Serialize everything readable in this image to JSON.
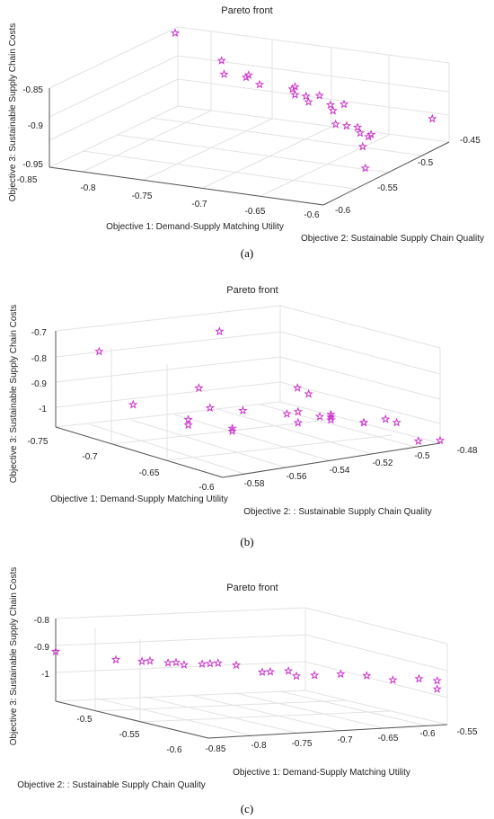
{
  "chart_data": [
    {
      "type": "scatter",
      "title": "Pareto front",
      "caption": "(a)",
      "xlabel": "Objective 1: Demand-Supply Matching Utility",
      "ylabel": "Objective 2: Sustainable Supply Chain Quality",
      "zlabel": "Objective 3: Sustainable Supply Chain Costs",
      "x_ticks": [
        "-0.8",
        "-0.75",
        "-0.7",
        "-0.65",
        "-0.6"
      ],
      "y_ticks": [
        "-0.6",
        "-0.55",
        "-0.5",
        "-0.45"
      ],
      "z_ticks": [
        "-0.85",
        "-0.9",
        "-0.95"
      ],
      "corner_label": "-0.85",
      "marker": "pentagram",
      "color": "#cc33cc",
      "grid": true,
      "points": [
        {
          "x": -0.85,
          "y": -0.45,
          "z": -0.86
        },
        {
          "x": -0.8,
          "y": -0.46,
          "z": -0.88
        },
        {
          "x": -0.79,
          "y": -0.47,
          "z": -0.89
        },
        {
          "x": -0.77,
          "y": -0.47,
          "z": -0.89
        },
        {
          "x": -0.76,
          "y": -0.48,
          "z": -0.88
        },
        {
          "x": -0.75,
          "y": -0.48,
          "z": -0.89
        },
        {
          "x": -0.72,
          "y": -0.48,
          "z": -0.89
        },
        {
          "x": -0.71,
          "y": -0.49,
          "z": -0.89
        },
        {
          "x": -0.71,
          "y": -0.49,
          "z": -0.88
        },
        {
          "x": -0.7,
          "y": -0.49,
          "z": -0.89
        },
        {
          "x": -0.69,
          "y": -0.5,
          "z": -0.89
        },
        {
          "x": -0.68,
          "y": -0.5,
          "z": -0.88
        },
        {
          "x": -0.67,
          "y": -0.5,
          "z": -0.89
        },
        {
          "x": -0.66,
          "y": -0.51,
          "z": -0.89
        },
        {
          "x": -0.65,
          "y": -0.51,
          "z": -0.88
        },
        {
          "x": -0.65,
          "y": -0.52,
          "z": -0.9
        },
        {
          "x": -0.64,
          "y": -0.52,
          "z": -0.9
        },
        {
          "x": -0.63,
          "y": -0.52,
          "z": -0.9
        },
        {
          "x": -0.62,
          "y": -0.53,
          "z": -0.9
        },
        {
          "x": -0.61,
          "y": -0.53,
          "z": -0.9
        },
        {
          "x": -0.61,
          "y": -0.54,
          "z": -0.91
        },
        {
          "x": -0.62,
          "y": -0.52,
          "z": -0.91
        },
        {
          "x": -0.6,
          "y": -0.47,
          "z": -0.91
        },
        {
          "x": -0.6,
          "y": -0.55,
          "z": -0.93
        }
      ]
    },
    {
      "type": "scatter",
      "title": "Pareto front",
      "caption": "(b)",
      "xlabel": "Objective 1: Demand-Supply Matching Utility",
      "ylabel": "Objective 2: : Sustainable Supply Chain Quality",
      "zlabel": "Objective 3: Sustainable Supply Chain Costs",
      "x_ticks": [
        "-0.75",
        "-0.7",
        "-0.65",
        "-0.6"
      ],
      "y_ticks": [
        "-0.58",
        "-0.56",
        "-0.54",
        "-0.52",
        "-0.5",
        "-0.48"
      ],
      "z_ticks": [
        "-0.7",
        "-0.8",
        "-0.9",
        "-1"
      ],
      "marker": "pentagram",
      "color": "#cc33cc",
      "grid": true,
      "points": [
        {
          "x": -0.75,
          "y": -0.56,
          "z": -0.8
        },
        {
          "x": -0.72,
          "y": -0.52,
          "z": -0.74
        },
        {
          "x": -0.7,
          "y": -0.57,
          "z": -0.92
        },
        {
          "x": -0.68,
          "y": -0.55,
          "z": -0.86
        },
        {
          "x": -0.67,
          "y": -0.55,
          "z": -0.92
        },
        {
          "x": -0.67,
          "y": -0.56,
          "z": -0.95
        },
        {
          "x": -0.67,
          "y": -0.56,
          "z": -0.97
        },
        {
          "x": -0.66,
          "y": -0.54,
          "z": -0.93
        },
        {
          "x": -0.65,
          "y": -0.55,
          "z": -0.97
        },
        {
          "x": -0.65,
          "y": -0.55,
          "z": -0.98
        },
        {
          "x": -0.65,
          "y": -0.52,
          "z": -0.86
        },
        {
          "x": -0.64,
          "y": -0.53,
          "z": -0.93
        },
        {
          "x": -0.64,
          "y": -0.52,
          "z": -0.87
        },
        {
          "x": -0.63,
          "y": -0.53,
          "z": -0.91
        },
        {
          "x": -0.63,
          "y": -0.53,
          "z": -0.95
        },
        {
          "x": -0.63,
          "y": -0.52,
          "z": -0.94
        },
        {
          "x": -0.62,
          "y": -0.52,
          "z": -0.94
        },
        {
          "x": -0.62,
          "y": -0.52,
          "z": -0.93
        },
        {
          "x": -0.62,
          "y": -0.52,
          "z": -0.92
        },
        {
          "x": -0.61,
          "y": -0.51,
          "z": -0.95
        },
        {
          "x": -0.61,
          "y": -0.51,
          "z": -0.95
        },
        {
          "x": -0.61,
          "y": -0.5,
          "z": -0.95
        },
        {
          "x": -0.6,
          "y": -0.5,
          "z": -0.95
        },
        {
          "x": -0.6,
          "y": -0.49,
          "z": -1.03
        },
        {
          "x": -0.6,
          "y": -0.48,
          "z": -1.04
        }
      ]
    },
    {
      "type": "scatter",
      "title": "Pareto front",
      "caption": "(c)",
      "xlabel": "Objective 2: : Sustainable Supply Chain Quality",
      "ylabel": "Objective 1: Demand-Supply Matching Utility",
      "zlabel": "Objective 3: Sustainable Supply Chain Costs",
      "x_ticks": [
        "-0.5",
        "-0.55",
        "-0.6"
      ],
      "y_ticks": [
        "-0.85",
        "-0.8",
        "-0.75",
        "-0.7",
        "-0.65",
        "-0.6",
        "-0.55"
      ],
      "z_ticks": [
        "-0.8",
        "-0.9",
        "-1"
      ],
      "marker": "pentagram",
      "color": "#cc33cc",
      "grid": true,
      "points": [
        {
          "x": -0.45,
          "y": -0.85,
          "z": -0.87
        },
        {
          "x": -0.47,
          "y": -0.8,
          "z": -0.89
        },
        {
          "x": -0.48,
          "y": -0.78,
          "z": -0.89
        },
        {
          "x": -0.48,
          "y": -0.77,
          "z": -0.89
        },
        {
          "x": -0.49,
          "y": -0.76,
          "z": -0.89
        },
        {
          "x": -0.49,
          "y": -0.75,
          "z": -0.89
        },
        {
          "x": -0.49,
          "y": -0.74,
          "z": -0.9
        },
        {
          "x": -0.5,
          "y": -0.73,
          "z": -0.89
        },
        {
          "x": -0.5,
          "y": -0.72,
          "z": -0.89
        },
        {
          "x": -0.5,
          "y": -0.71,
          "z": -0.89
        },
        {
          "x": -0.51,
          "y": -0.7,
          "z": -0.89
        },
        {
          "x": -0.52,
          "y": -0.68,
          "z": -0.91
        },
        {
          "x": -0.52,
          "y": -0.67,
          "z": -0.91
        },
        {
          "x": -0.53,
          "y": -0.66,
          "z": -0.9
        },
        {
          "x": -0.53,
          "y": -0.65,
          "z": -0.92
        },
        {
          "x": -0.54,
          "y": -0.64,
          "z": -0.91
        },
        {
          "x": -0.55,
          "y": -0.62,
          "z": -0.9
        },
        {
          "x": -0.56,
          "y": -0.6,
          "z": -0.9
        },
        {
          "x": -0.57,
          "y": -0.58,
          "z": -0.91
        },
        {
          "x": -0.58,
          "y": -0.56,
          "z": -0.9
        },
        {
          "x": -0.59,
          "y": -0.55,
          "z": -0.9
        },
        {
          "x": -0.59,
          "y": -0.55,
          "z": -0.93
        }
      ]
    }
  ]
}
